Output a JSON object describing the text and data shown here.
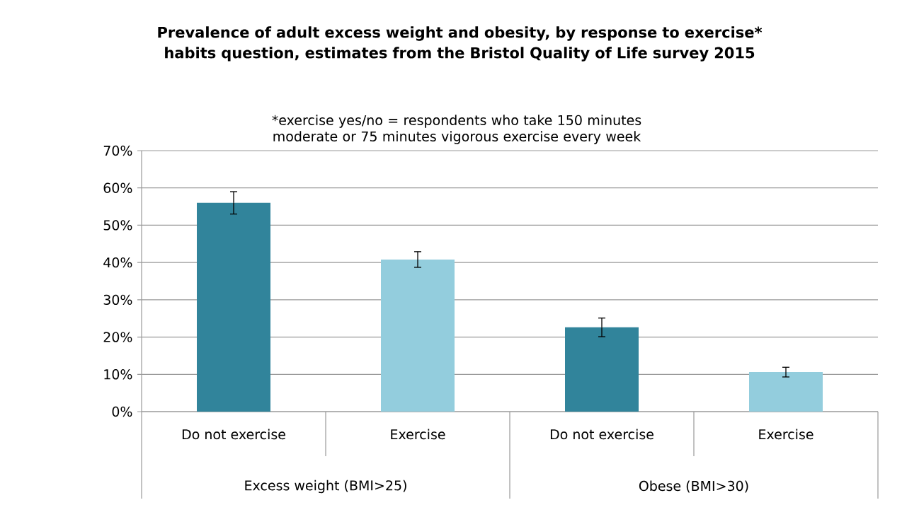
{
  "chart_data": {
    "type": "bar",
    "title": "Prevalence of adult excess weight and obesity, by response to exercise* habits question, estimates from the Bristol Quality of Life survey 2015",
    "subtitle": "*exercise yes/no = respondents who take 150 minutes moderate or 75 minutes vigorous exercise every week",
    "categories": [
      "Do not exercise",
      "Exercise",
      "Do not exercise",
      "Exercise"
    ],
    "values": [
      56,
      40.8,
      22.6,
      10.6
    ],
    "errors": [
      3,
      2.1,
      2.5,
      1.3
    ],
    "colors": [
      "#31849b",
      "#93cddd",
      "#31849b",
      "#93cddd"
    ],
    "annotations": [
      "Excess weight (BMI>25)",
      "Obese (BMI>30)"
    ],
    "ylim": [
      0,
      70
    ],
    "yticks": [
      {
        "value": 0,
        "label": "0%"
      },
      {
        "value": 10,
        "label": "10%"
      },
      {
        "value": 20,
        "label": "20%"
      },
      {
        "value": 30,
        "label": "30%"
      },
      {
        "value": 40,
        "label": "40%"
      },
      {
        "value": 50,
        "label": "50%"
      },
      {
        "value": 60,
        "label": "60%"
      },
      {
        "value": 70,
        "label": "70%"
      }
    ],
    "grid": "y"
  }
}
